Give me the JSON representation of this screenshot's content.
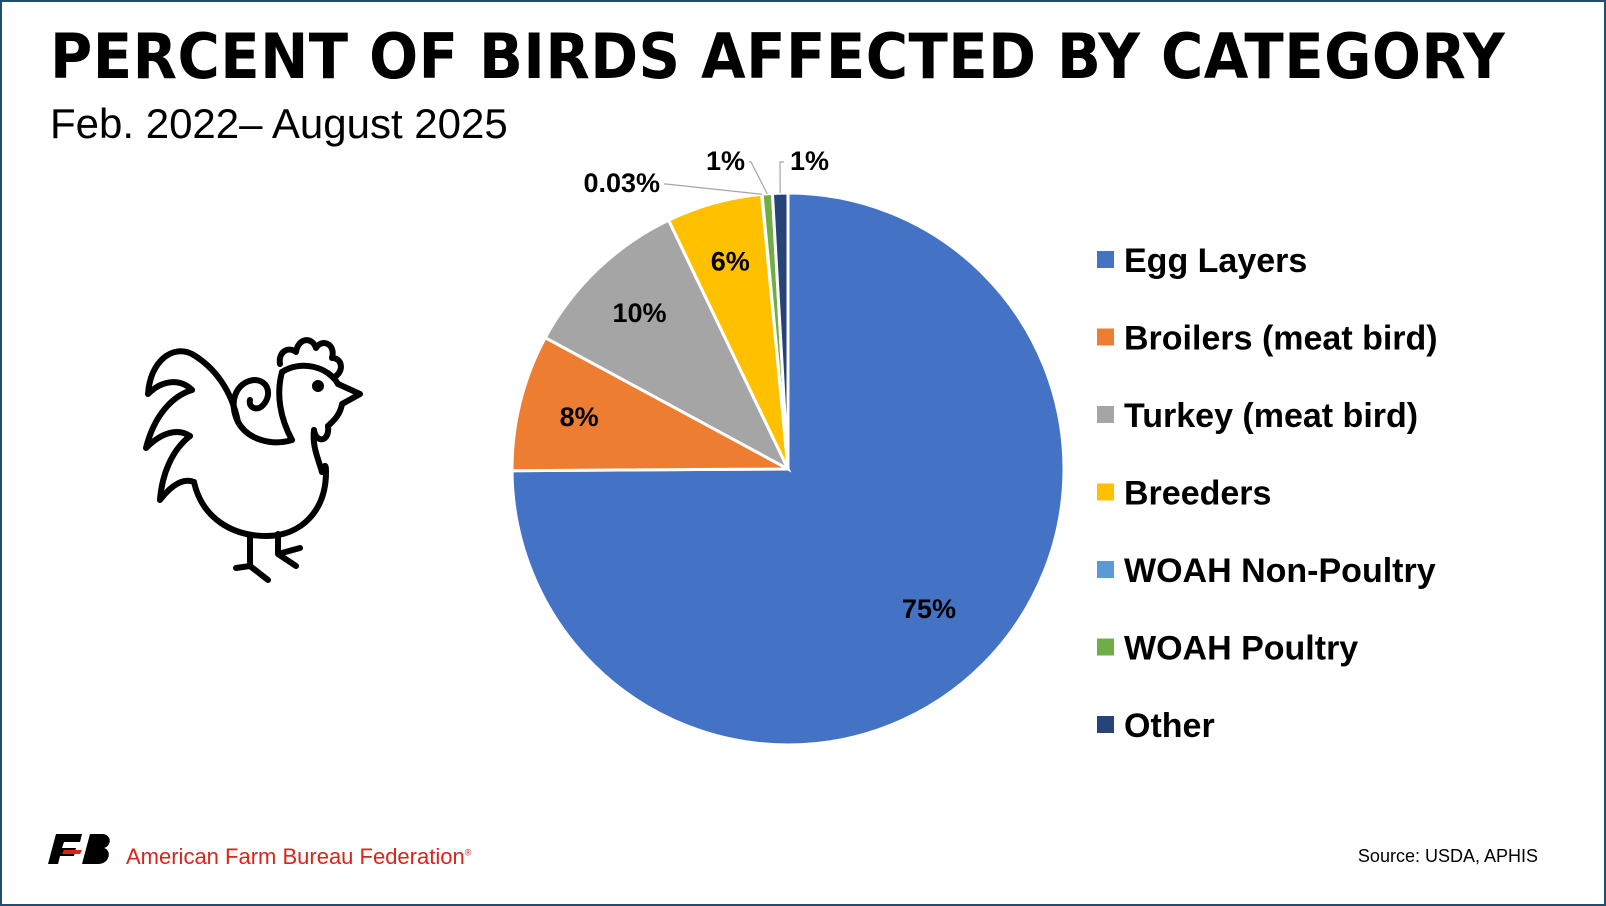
{
  "chart_data": {
    "type": "pie",
    "title": "PERCENT OF BIRDS AFFECTED BY CATEGORY",
    "subtitle": "Feb. 2022– August 2025",
    "legend_position": "right",
    "slices": [
      {
        "name": "Egg Layers",
        "value": 75.0,
        "label": "75%",
        "color": "#4472c4"
      },
      {
        "name": "Broilers (meat bird)",
        "value": 8.0,
        "label": "8%",
        "color": "#ed7d31"
      },
      {
        "name": "Turkey (meat bird)",
        "value": 10.0,
        "label": "10%",
        "color": "#a5a5a5"
      },
      {
        "name": "Breeders",
        "value": 5.6,
        "label": "6%",
        "color": "#ffc000"
      },
      {
        "name": "WOAH Non-Poultry",
        "value": 0.03,
        "label": "0.03%",
        "color": "#5b9bd5"
      },
      {
        "name": "WOAH Poultry",
        "value": 0.6,
        "label": "1%",
        "color": "#70ad47"
      },
      {
        "name": "Other",
        "value": 0.9,
        "label": "1%",
        "color": "#264478"
      }
    ]
  },
  "decoration": {
    "illustration_icon": "rooster-outline-icon",
    "logo_icon": "fb-logo-icon"
  },
  "footer": {
    "organization": "American Farm Bureau Federation",
    "registered_mark": "®",
    "source": "Source: USDA, APHIS"
  }
}
